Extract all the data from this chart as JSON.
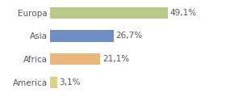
{
  "categories": [
    "America",
    "Africa",
    "Asia",
    "Europa"
  ],
  "values": [
    3.1,
    21.1,
    26.7,
    49.1
  ],
  "labels": [
    "3,1%",
    "21,1%",
    "26,7%",
    "49,1%"
  ],
  "colors": [
    "#ddd080",
    "#e8b87a",
    "#6e8fc0",
    "#b5c98a"
  ],
  "background_color": "#ffffff",
  "xlim": [
    0,
    62
  ],
  "bar_height": 0.5,
  "label_fontsize": 7.5,
  "tick_fontsize": 7.5
}
